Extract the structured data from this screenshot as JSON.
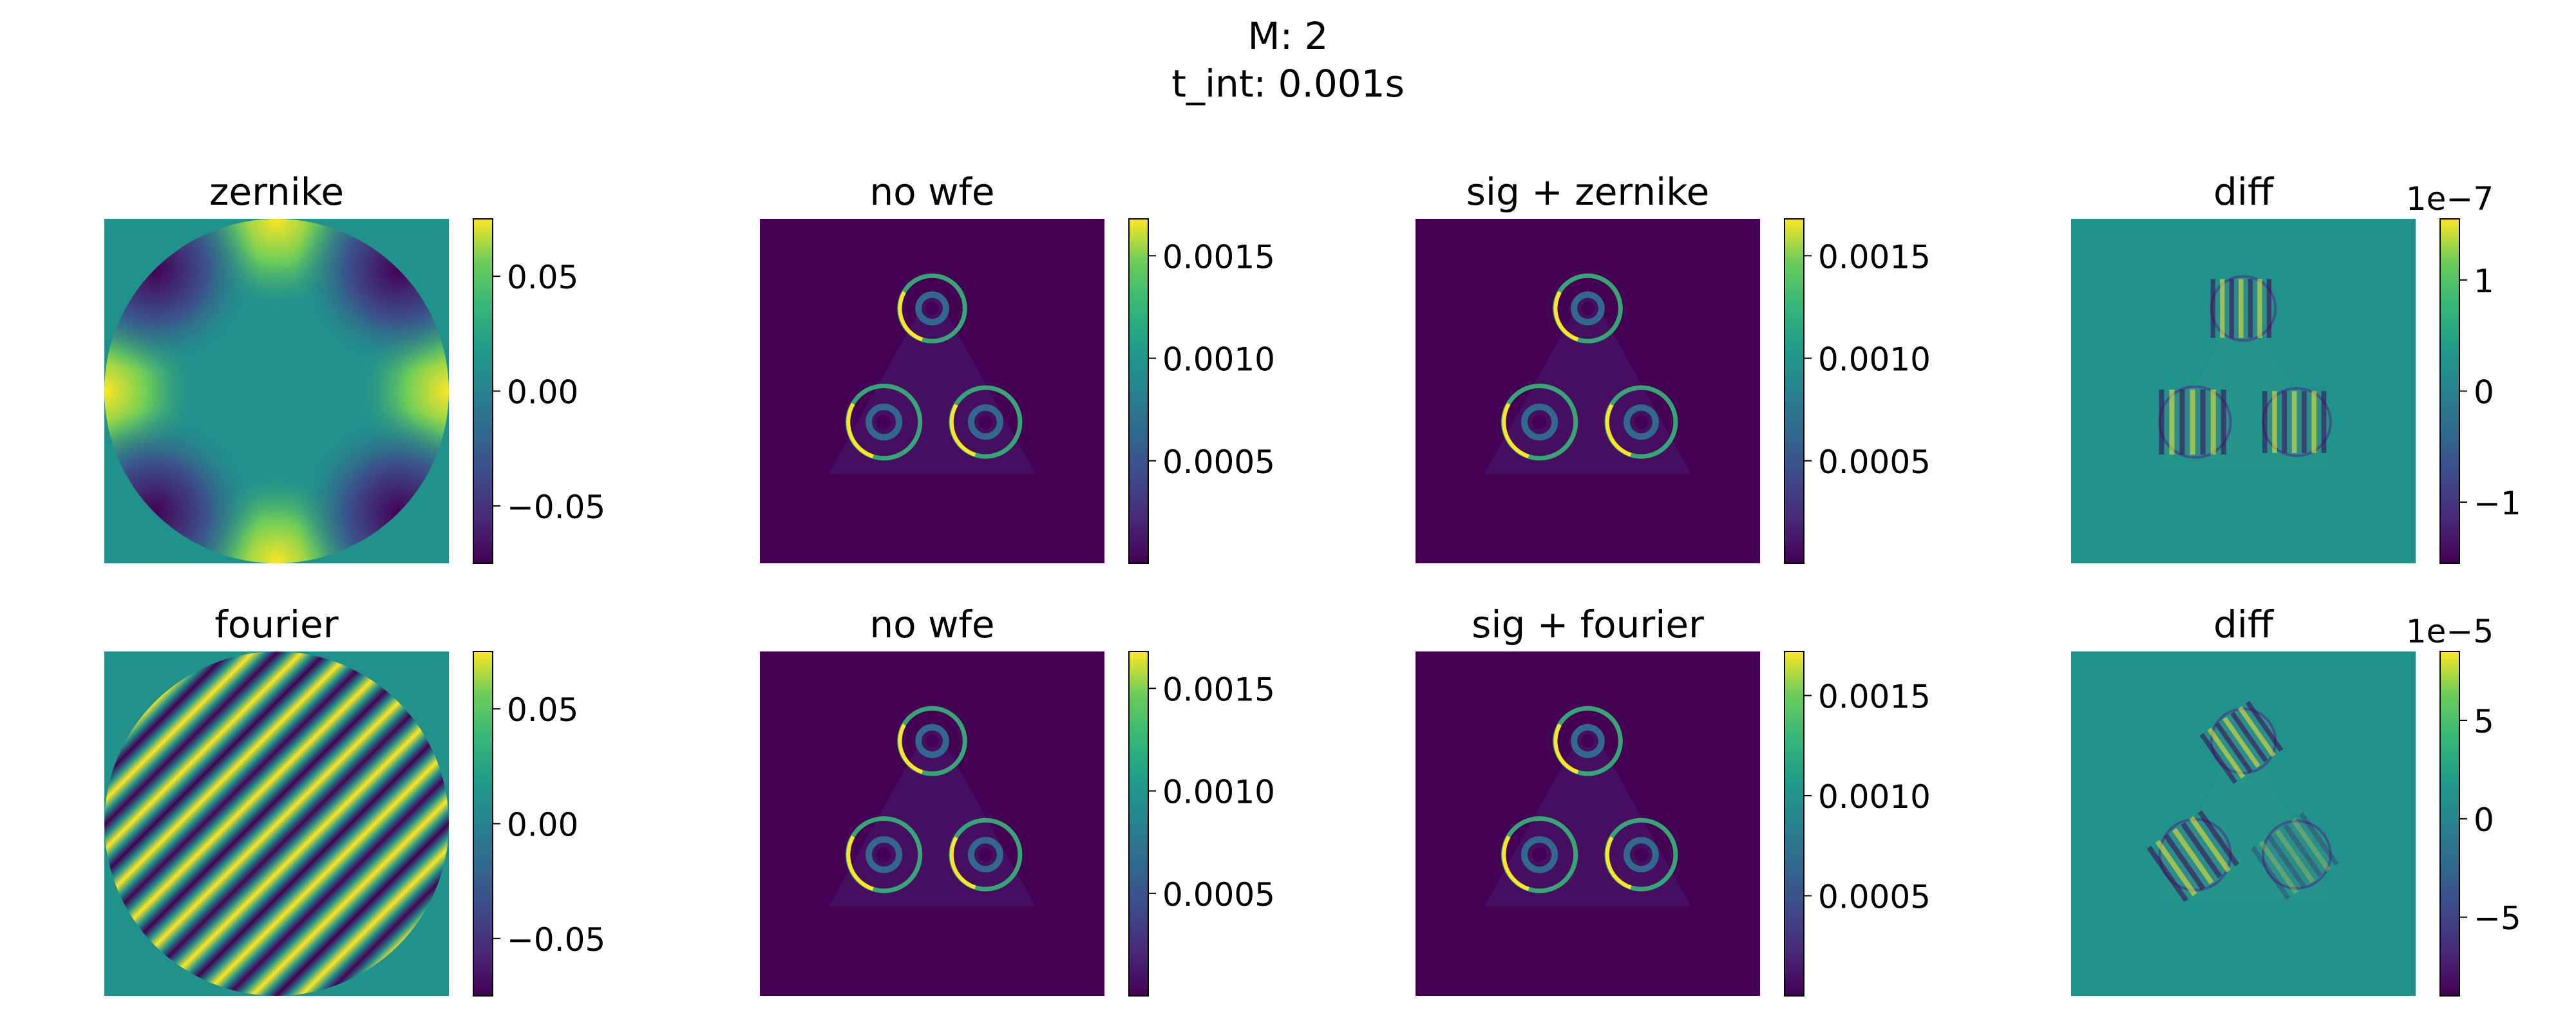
{
  "suptitle": [
    "M: 2",
    "t_int: 0.001s"
  ],
  "colors": {
    "viridis_dark": "#440154",
    "viridis_mid": "#21918c",
    "viridis_bright": "#fde725"
  },
  "chart_data": [
    {
      "type": "heatmap",
      "title": "zernike",
      "row": 0,
      "col": 0,
      "image": "zernike",
      "colorbar": {
        "range": [
          -0.075,
          0.075
        ],
        "ticks": [
          0.05,
          0.0,
          -0.05
        ],
        "tick_labels": [
          "0.05",
          "0.00",
          "−0.05"
        ],
        "offset_text": ""
      }
    },
    {
      "type": "heatmap",
      "title": "no wfe",
      "row": 0,
      "col": 1,
      "image": "psf",
      "colorbar": {
        "range": [
          0,
          0.00168
        ],
        "ticks": [
          0.0015,
          0.001,
          0.0005
        ],
        "tick_labels": [
          "0.0015",
          "0.0010",
          "0.0005"
        ],
        "offset_text": ""
      }
    },
    {
      "type": "heatmap",
      "title": "sig + zernike",
      "row": 0,
      "col": 2,
      "image": "psf",
      "colorbar": {
        "range": [
          0,
          0.00168
        ],
        "ticks": [
          0.0015,
          0.001,
          0.0005
        ],
        "tick_labels": [
          "0.0015",
          "0.0010",
          "0.0005"
        ],
        "offset_text": ""
      }
    },
    {
      "type": "heatmap",
      "title": "diff",
      "row": 0,
      "col": 3,
      "image": "diff_zernike",
      "colorbar": {
        "range": [
          -1.55,
          1.55
        ],
        "ticks": [
          1,
          0,
          -1
        ],
        "tick_labels": [
          "1",
          "0",
          "−1"
        ],
        "offset_text": "1e−7"
      }
    },
    {
      "type": "heatmap",
      "title": "fourier",
      "row": 1,
      "col": 0,
      "image": "fourier",
      "colorbar": {
        "range": [
          -0.075,
          0.075
        ],
        "ticks": [
          0.05,
          0.0,
          -0.05
        ],
        "tick_labels": [
          "0.05",
          "0.00",
          "−0.05"
        ],
        "offset_text": ""
      }
    },
    {
      "type": "heatmap",
      "title": "no wfe",
      "row": 1,
      "col": 1,
      "image": "psf",
      "colorbar": {
        "range": [
          0,
          0.00168
        ],
        "ticks": [
          0.0015,
          0.001,
          0.0005
        ],
        "tick_labels": [
          "0.0015",
          "0.0010",
          "0.0005"
        ],
        "offset_text": ""
      }
    },
    {
      "type": "heatmap",
      "title": "sig + fourier",
      "row": 1,
      "col": 2,
      "image": "psf",
      "colorbar": {
        "range": [
          0,
          0.00172
        ],
        "ticks": [
          0.0015,
          0.001,
          0.0005
        ],
        "tick_labels": [
          "0.0015",
          "0.0010",
          "0.0005"
        ],
        "offset_text": ""
      }
    },
    {
      "type": "heatmap",
      "title": "diff",
      "row": 1,
      "col": 3,
      "image": "diff_fourier",
      "colorbar": {
        "range": [
          -9,
          8.5
        ],
        "ticks": [
          5,
          0,
          -5
        ],
        "tick_labels": [
          "5",
          "0",
          "−5"
        ],
        "offset_text": "1e−5"
      }
    }
  ]
}
